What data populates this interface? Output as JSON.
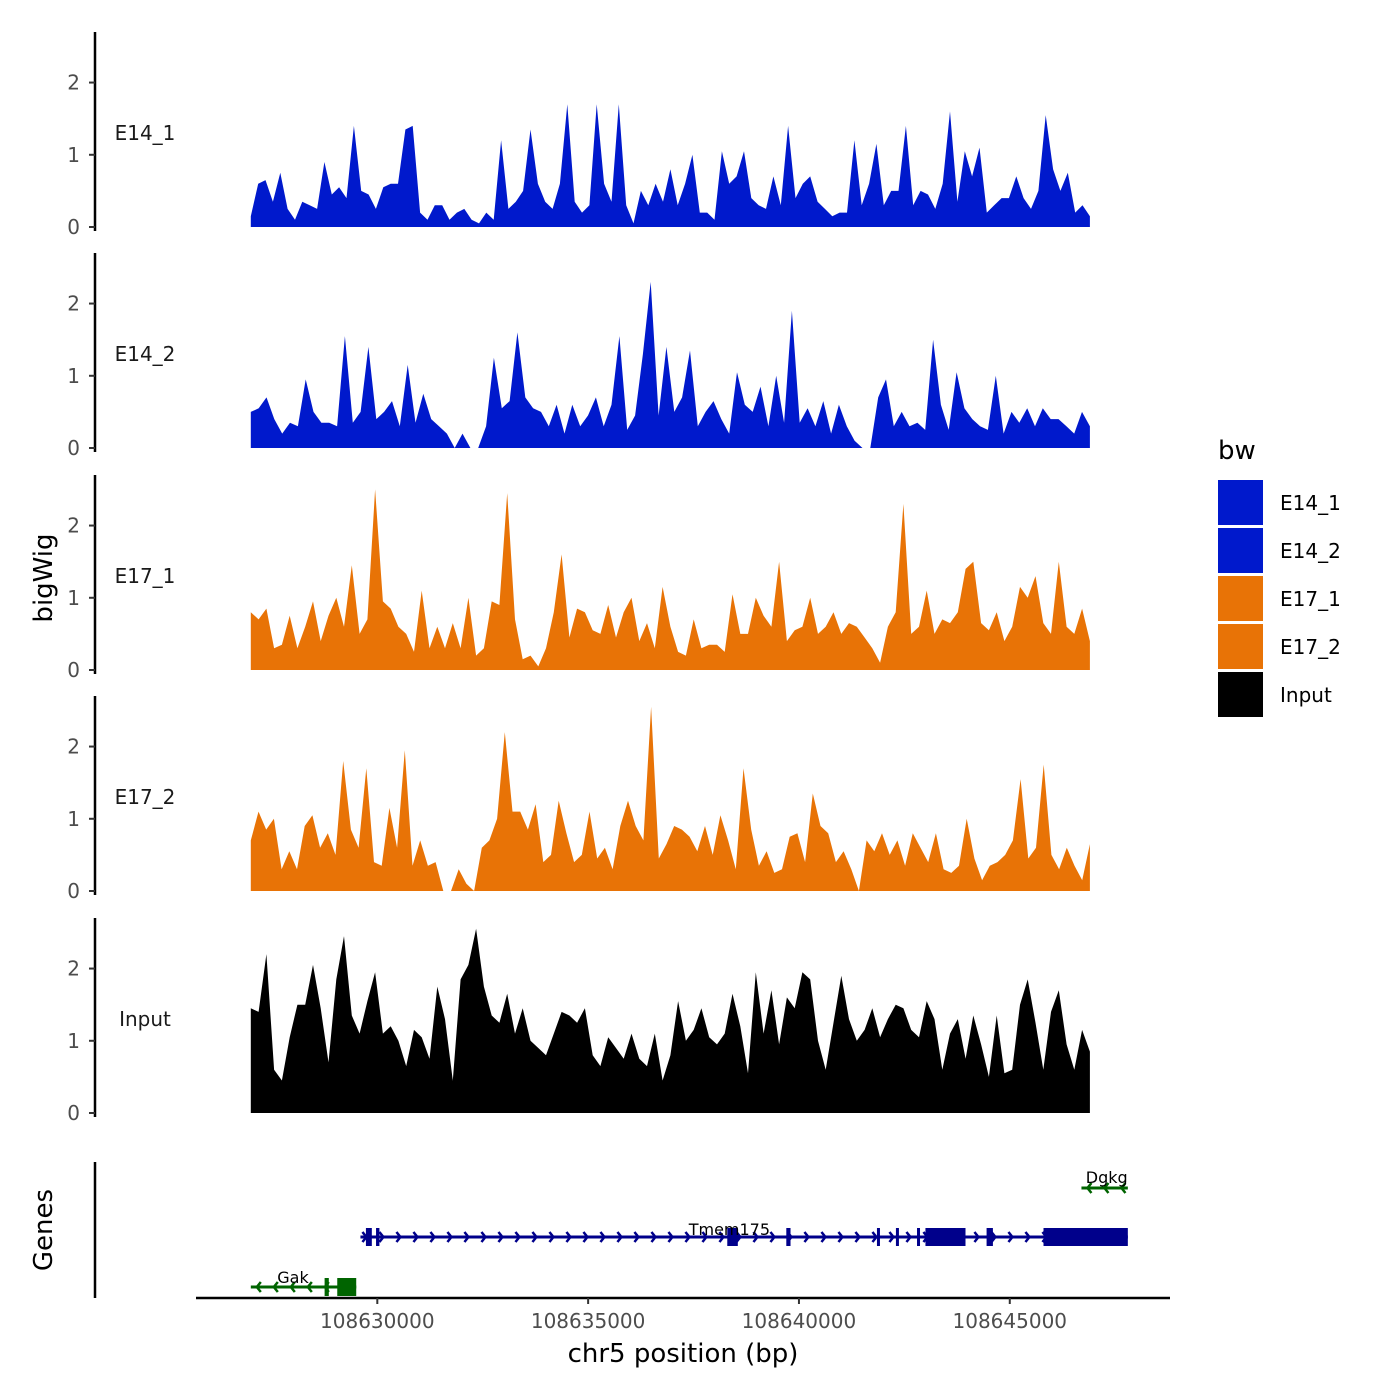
{
  "chart_data": {
    "type": "area",
    "title": "",
    "xlabel": "chr5 position (bp)",
    "ylabel": "bigWig",
    "genes_label": "Genes",
    "xlim": [
      108625700,
      108648800
    ],
    "ylim": [
      0,
      2.7
    ],
    "x_ticks": [
      108630000,
      108635000,
      108640000,
      108645000
    ],
    "x_tick_labels": [
      "108630000",
      "108635000",
      "108640000",
      "108645000"
    ],
    "y_ticks": [
      0,
      1,
      2
    ],
    "y_tick_labels": [
      "0",
      "1",
      "2"
    ],
    "x_start": 108627000,
    "x_end": 108646900,
    "legend": {
      "title": "bw",
      "entries": [
        {
          "label": "E14_1",
          "color": "#0019CC"
        },
        {
          "label": "E14_2",
          "color": "#0019CC"
        },
        {
          "label": "E17_1",
          "color": "#E87306"
        },
        {
          "label": "E17_2",
          "color": "#E87306"
        },
        {
          "label": "Input",
          "color": "#000000"
        }
      ]
    },
    "series": [
      {
        "name": "E14_1",
        "color": "#0019CC",
        "values": [
          0.15,
          0.6,
          0.65,
          0.35,
          0.75,
          0.25,
          0.1,
          0.35,
          0.3,
          0.25,
          0.9,
          0.45,
          0.55,
          0.4,
          1.4,
          0.5,
          0.45,
          0.25,
          0.55,
          0.6,
          0.6,
          1.35,
          1.4,
          0.2,
          0.1,
          0.3,
          0.3,
          0.1,
          0.2,
          0.25,
          0.1,
          0.05,
          0.2,
          0.1,
          1.2,
          0.25,
          0.35,
          0.5,
          1.35,
          0.6,
          0.35,
          0.25,
          0.6,
          1.7,
          0.35,
          0.2,
          0.3,
          1.7,
          0.6,
          0.35,
          1.7,
          0.3,
          0.05,
          0.5,
          0.3,
          0.6,
          0.35,
          0.8,
          0.3,
          0.6,
          1.0,
          0.2,
          0.2,
          0.1,
          1.05,
          0.6,
          0.7,
          1.05,
          0.4,
          0.3,
          0.25,
          0.7,
          0.3,
          1.4,
          0.4,
          0.6,
          0.7,
          0.35,
          0.25,
          0.15,
          0.2,
          0.2,
          1.2,
          0.3,
          0.6,
          1.15,
          0.3,
          0.5,
          0.5,
          1.4,
          0.3,
          0.5,
          0.45,
          0.25,
          0.6,
          1.6,
          0.35,
          1.05,
          0.7,
          1.1,
          0.2,
          0.3,
          0.4,
          0.4,
          0.7,
          0.4,
          0.25,
          0.5,
          1.55,
          0.8,
          0.5,
          0.75,
          0.2,
          0.3,
          0.15
        ]
      },
      {
        "name": "E14_2",
        "color": "#0019CC",
        "values": [
          0.5,
          0.55,
          0.7,
          0.4,
          0.2,
          0.35,
          0.3,
          0.95,
          0.5,
          0.35,
          0.35,
          0.3,
          1.55,
          0.35,
          0.5,
          1.4,
          0.4,
          0.5,
          0.65,
          0.3,
          1.15,
          0.35,
          0.75,
          0.4,
          0.3,
          0.2,
          0.0,
          0.2,
          0.0,
          0.0,
          0.3,
          1.25,
          0.55,
          0.65,
          1.6,
          0.7,
          0.55,
          0.5,
          0.3,
          0.6,
          0.2,
          0.6,
          0.3,
          0.45,
          0.7,
          0.3,
          0.6,
          1.55,
          0.25,
          0.45,
          1.3,
          2.3,
          0.45,
          1.4,
          0.5,
          0.7,
          1.35,
          0.3,
          0.5,
          0.65,
          0.4,
          0.2,
          1.05,
          0.6,
          0.5,
          0.85,
          0.3,
          1.0,
          0.35,
          1.9,
          0.35,
          0.55,
          0.3,
          0.65,
          0.2,
          0.6,
          0.3,
          0.1,
          0.0,
          0.0,
          0.7,
          0.95,
          0.3,
          0.5,
          0.3,
          0.35,
          0.25,
          1.5,
          0.6,
          0.25,
          1.05,
          0.55,
          0.4,
          0.3,
          0.25,
          1.0,
          0.2,
          0.5,
          0.35,
          0.55,
          0.3,
          0.55,
          0.4,
          0.4,
          0.3,
          0.2,
          0.5,
          0.3
        ]
      },
      {
        "name": "E17_1",
        "color": "#E87306",
        "values": [
          0.8,
          0.7,
          0.85,
          0.3,
          0.35,
          0.75,
          0.3,
          0.6,
          0.95,
          0.4,
          0.75,
          1.0,
          0.6,
          1.45,
          0.5,
          0.7,
          2.5,
          0.95,
          0.85,
          0.6,
          0.5,
          0.25,
          1.1,
          0.3,
          0.6,
          0.3,
          0.65,
          0.3,
          1.0,
          0.2,
          0.3,
          0.95,
          0.9,
          2.45,
          0.7,
          0.15,
          0.2,
          0.05,
          0.3,
          0.8,
          1.6,
          0.45,
          0.85,
          0.8,
          0.55,
          0.5,
          0.9,
          0.45,
          0.8,
          1.0,
          0.4,
          0.65,
          0.3,
          1.15,
          0.6,
          0.25,
          0.2,
          0.7,
          0.3,
          0.35,
          0.35,
          0.25,
          1.05,
          0.5,
          0.5,
          1.0,
          0.75,
          0.6,
          1.5,
          0.4,
          0.55,
          0.6,
          1.0,
          0.5,
          0.6,
          0.8,
          0.5,
          0.65,
          0.6,
          0.45,
          0.3,
          0.1,
          0.6,
          0.8,
          2.3,
          0.5,
          0.6,
          1.1,
          0.5,
          0.7,
          0.65,
          0.8,
          1.4,
          1.5,
          0.65,
          0.55,
          0.8,
          0.4,
          0.6,
          1.15,
          1.0,
          1.3,
          0.65,
          0.5,
          1.5,
          0.6,
          0.5,
          0.85,
          0.4
        ]
      },
      {
        "name": "E17_2",
        "color": "#E87306",
        "values": [
          0.7,
          1.1,
          0.85,
          1.0,
          0.3,
          0.55,
          0.3,
          0.9,
          1.05,
          0.6,
          0.8,
          0.5,
          1.8,
          0.85,
          0.6,
          1.7,
          0.4,
          0.35,
          1.15,
          0.6,
          1.95,
          0.35,
          0.7,
          0.35,
          0.4,
          0.0,
          0.0,
          0.3,
          0.1,
          0.0,
          0.6,
          0.7,
          1.0,
          2.2,
          1.1,
          1.1,
          0.85,
          1.2,
          0.4,
          0.5,
          1.25,
          0.8,
          0.4,
          0.5,
          1.1,
          0.45,
          0.6,
          0.3,
          0.9,
          1.25,
          0.9,
          0.7,
          2.55,
          0.45,
          0.65,
          0.9,
          0.85,
          0.75,
          0.55,
          0.9,
          0.5,
          1.05,
          0.7,
          0.3,
          1.7,
          0.85,
          0.35,
          0.55,
          0.25,
          0.3,
          0.75,
          0.8,
          0.4,
          1.35,
          0.9,
          0.8,
          0.4,
          0.55,
          0.3,
          0.0,
          0.7,
          0.55,
          0.8,
          0.5,
          0.7,
          0.35,
          0.8,
          0.6,
          0.4,
          0.8,
          0.3,
          0.25,
          0.35,
          1.0,
          0.45,
          0.15,
          0.35,
          0.4,
          0.5,
          0.7,
          1.55,
          0.45,
          0.6,
          1.75,
          0.5,
          0.3,
          0.6,
          0.35,
          0.15,
          0.65
        ]
      },
      {
        "name": "Input",
        "color": "#000000",
        "values": [
          1.45,
          1.4,
          2.2,
          0.6,
          0.45,
          1.05,
          1.5,
          1.5,
          2.05,
          1.45,
          0.7,
          1.85,
          2.45,
          1.35,
          1.1,
          1.55,
          1.95,
          1.1,
          1.2,
          1.0,
          0.65,
          1.15,
          1.05,
          0.75,
          1.75,
          1.3,
          0.45,
          1.85,
          2.05,
          2.55,
          1.75,
          1.35,
          1.25,
          1.65,
          1.1,
          1.45,
          1.0,
          0.9,
          0.8,
          1.1,
          1.4,
          1.35,
          1.25,
          1.45,
          0.8,
          0.65,
          1.05,
          0.9,
          0.75,
          1.1,
          0.75,
          0.65,
          1.1,
          0.45,
          0.8,
          1.55,
          1.0,
          1.15,
          1.45,
          1.05,
          0.95,
          1.1,
          1.65,
          1.2,
          0.55,
          1.95,
          1.1,
          1.7,
          0.95,
          1.6,
          1.45,
          1.95,
          1.85,
          1.0,
          0.6,
          1.25,
          1.9,
          1.3,
          1.0,
          1.15,
          1.45,
          1.05,
          1.3,
          1.5,
          1.45,
          1.15,
          1.05,
          1.55,
          1.3,
          0.6,
          1.1,
          1.3,
          0.75,
          1.35,
          0.95,
          0.5,
          1.35,
          0.55,
          0.6,
          1.5,
          1.85,
          1.25,
          0.6,
          1.4,
          1.7,
          0.95,
          0.6,
          1.15,
          0.85
        ]
      }
    ],
    "genes": [
      {
        "name": "Dgkg",
        "color": "#006400",
        "strand": "-",
        "start": 108646700,
        "end": 108647800,
        "row": 0,
        "exons": [],
        "label_pos": 108647300
      },
      {
        "name": "Tmem175",
        "color": "#00008B",
        "strand": "+",
        "start": 108629600,
        "end": 108647800,
        "row": 1,
        "exons": [
          [
            108629730,
            108629870
          ],
          [
            108629970,
            108630050
          ],
          [
            108638300,
            108638550
          ],
          [
            108639700,
            108639800
          ],
          [
            108641850,
            108641900
          ],
          [
            108642300,
            108642350
          ],
          [
            108642800,
            108642850
          ],
          [
            108643000,
            108643950
          ],
          [
            108644450,
            108644600
          ],
          [
            108645800,
            108647800
          ]
        ],
        "label_pos": 108638350
      },
      {
        "name": "Gak",
        "color": "#006400",
        "strand": "-",
        "start": 108627000,
        "end": 108629500,
        "row": 2,
        "exons": [
          [
            108628750,
            108628850
          ],
          [
            108629050,
            108629500
          ]
        ],
        "label_pos": 108628000
      }
    ]
  }
}
